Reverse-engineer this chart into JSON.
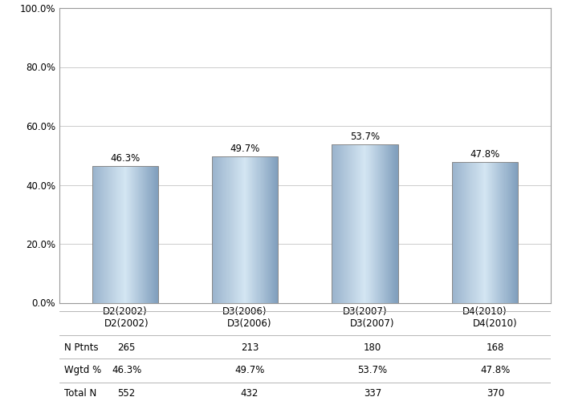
{
  "categories": [
    "D2(2002)",
    "D3(2006)",
    "D3(2007)",
    "D4(2010)"
  ],
  "values": [
    46.3,
    49.7,
    53.7,
    47.8
  ],
  "bar_labels": [
    "46.3%",
    "49.7%",
    "53.7%",
    "47.8%"
  ],
  "table_rows": [
    {
      "label": "N Ptnts",
      "values": [
        "265",
        "213",
        "180",
        "168"
      ]
    },
    {
      "label": "Wgtd %",
      "values": [
        "46.3%",
        "49.7%",
        "53.7%",
        "47.8%"
      ]
    },
    {
      "label": "Total N",
      "values": [
        "552",
        "432",
        "337",
        "370"
      ]
    }
  ],
  "ylim": [
    0,
    100
  ],
  "yticks": [
    0,
    20,
    40,
    60,
    80,
    100
  ],
  "ytick_labels": [
    "0.0%",
    "20.0%",
    "40.0%",
    "60.0%",
    "80.0%",
    "100.0%"
  ],
  "grid_color": "#cccccc",
  "background_color": "#ffffff",
  "bar_edge_color": "#888888",
  "label_fontsize": 8.5,
  "tick_fontsize": 8.5,
  "table_fontsize": 8.5,
  "bar_width": 0.55
}
